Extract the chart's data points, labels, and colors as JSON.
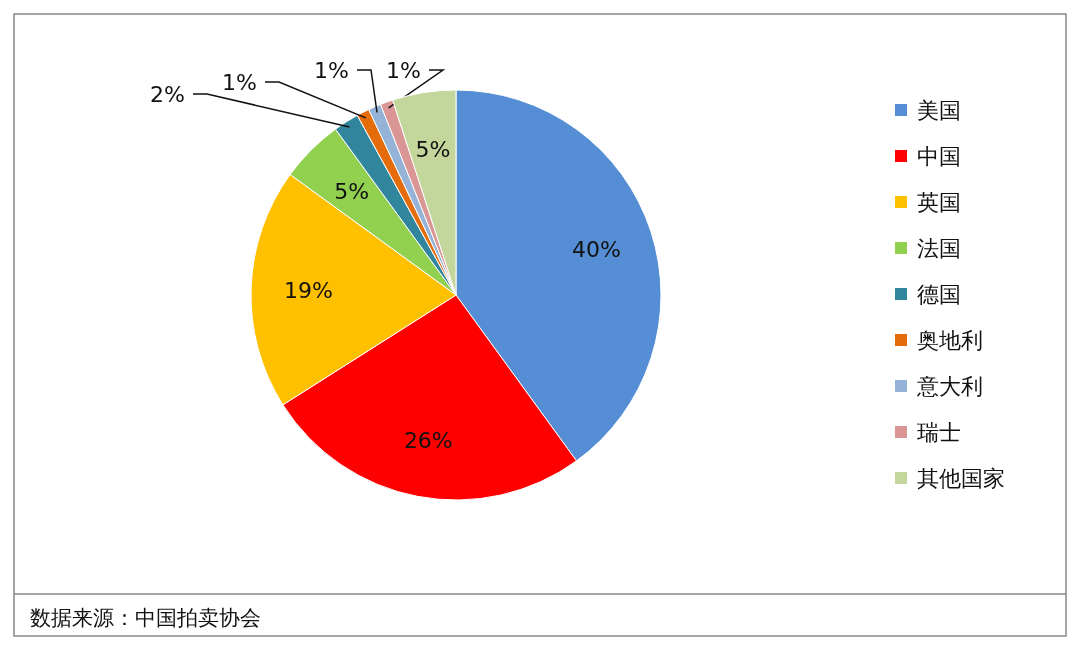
{
  "chart_data": {
    "type": "pie",
    "categories": [
      "美国",
      "中国",
      "英国",
      "法国",
      "德国",
      "奥地利",
      "意大利",
      "瑞士",
      "其他国家"
    ],
    "values": [
      40,
      26,
      19,
      5,
      2,
      1,
      1,
      1,
      5
    ],
    "colors": [
      "#558ed5",
      "#ff0000",
      "#ffc000",
      "#92d050",
      "#31859c",
      "#e46c0a",
      "#95b3d7",
      "#d99694",
      "#c3d69b"
    ],
    "value_labels": [
      "40%",
      "26%",
      "19%",
      "5%",
      "2%",
      "1%",
      "1%",
      "1%",
      "5%"
    ],
    "legend": "right",
    "annotations": [
      "数据来源：中国拍卖协会"
    ]
  }
}
